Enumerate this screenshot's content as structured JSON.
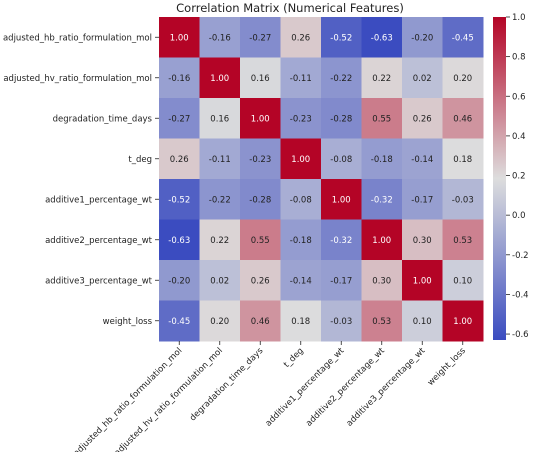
{
  "chart_data": {
    "type": "heatmap",
    "title": "Correlation Matrix (Numerical Features)",
    "row_labels": [
      "adjusted_hb_ratio_formulation_mol",
      "adjusted_hv_ratio_formulation_mol",
      "degradation_time_days",
      "t_deg",
      "additive1_percentage_wt",
      "additive2_percentage_wt",
      "additive3_percentage_wt",
      "weight_loss"
    ],
    "col_labels": [
      "adjusted_hb_ratio_formulation_mol",
      "adjusted_hv_ratio_formulation_mol",
      "degradation_time_days",
      "t_deg",
      "additive1_percentage_wt",
      "additive2_percentage_wt",
      "additive3_percentage_wt",
      "weight_loss"
    ],
    "values": [
      [
        1.0,
        -0.16,
        -0.27,
        0.26,
        -0.52,
        -0.63,
        -0.2,
        -0.45
      ],
      [
        -0.16,
        1.0,
        0.16,
        -0.11,
        -0.22,
        0.22,
        0.02,
        0.2
      ],
      [
        -0.27,
        0.16,
        1.0,
        -0.23,
        -0.28,
        0.55,
        0.26,
        0.46
      ],
      [
        0.26,
        -0.11,
        -0.23,
        1.0,
        -0.08,
        -0.18,
        -0.14,
        0.18
      ],
      [
        -0.52,
        -0.22,
        -0.28,
        -0.08,
        1.0,
        -0.32,
        -0.17,
        -0.03
      ],
      [
        -0.63,
        0.22,
        0.55,
        -0.18,
        -0.32,
        1.0,
        0.3,
        0.53
      ],
      [
        -0.2,
        0.02,
        0.26,
        -0.14,
        -0.17,
        0.3,
        1.0,
        0.1
      ],
      [
        -0.45,
        0.2,
        0.46,
        0.18,
        -0.03,
        0.53,
        0.1,
        1.0
      ]
    ],
    "value_labels": [
      [
        "1.00",
        "-0.16",
        "-0.27",
        "0.26",
        "-0.52",
        "-0.63",
        "-0.20",
        "-0.45"
      ],
      [
        "-0.16",
        "1.00",
        "0.16",
        "-0.11",
        "-0.22",
        "0.22",
        "0.02",
        "0.20"
      ],
      [
        "-0.27",
        "0.16",
        "1.00",
        "-0.23",
        "-0.28",
        "0.55",
        "0.26",
        "0.46"
      ],
      [
        "0.26",
        "-0.11",
        "-0.23",
        "1.00",
        "-0.08",
        "-0.18",
        "-0.14",
        "0.18"
      ],
      [
        "-0.52",
        "-0.22",
        "-0.28",
        "-0.08",
        "1.00",
        "-0.32",
        "-0.17",
        "-0.03"
      ],
      [
        "-0.63",
        "0.22",
        "0.55",
        "-0.18",
        "-0.32",
        "1.00",
        "0.30",
        "0.53"
      ],
      [
        "-0.20",
        "0.02",
        "0.26",
        "-0.14",
        "-0.17",
        "0.30",
        "1.00",
        "0.10"
      ],
      [
        "-0.45",
        "0.20",
        "0.46",
        "0.18",
        "-0.03",
        "0.53",
        "0.10",
        "1.00"
      ]
    ],
    "colormap": "coolwarm",
    "colormap_stops": [
      "#3b4cc0",
      "#dddddd",
      "#b40426"
    ],
    "vmin": -0.63,
    "vmax": 1.0,
    "colorbar_ticks": [
      "1.0",
      "0.8",
      "0.6",
      "0.4",
      "0.2",
      "0.0",
      "-0.2",
      "-0.4",
      "-0.6"
    ],
    "colorbar_tick_values": [
      1.0,
      0.8,
      0.6,
      0.4,
      0.2,
      0.0,
      -0.2,
      -0.4,
      -0.6
    ],
    "legend": "colorbar-right",
    "grid": false
  }
}
